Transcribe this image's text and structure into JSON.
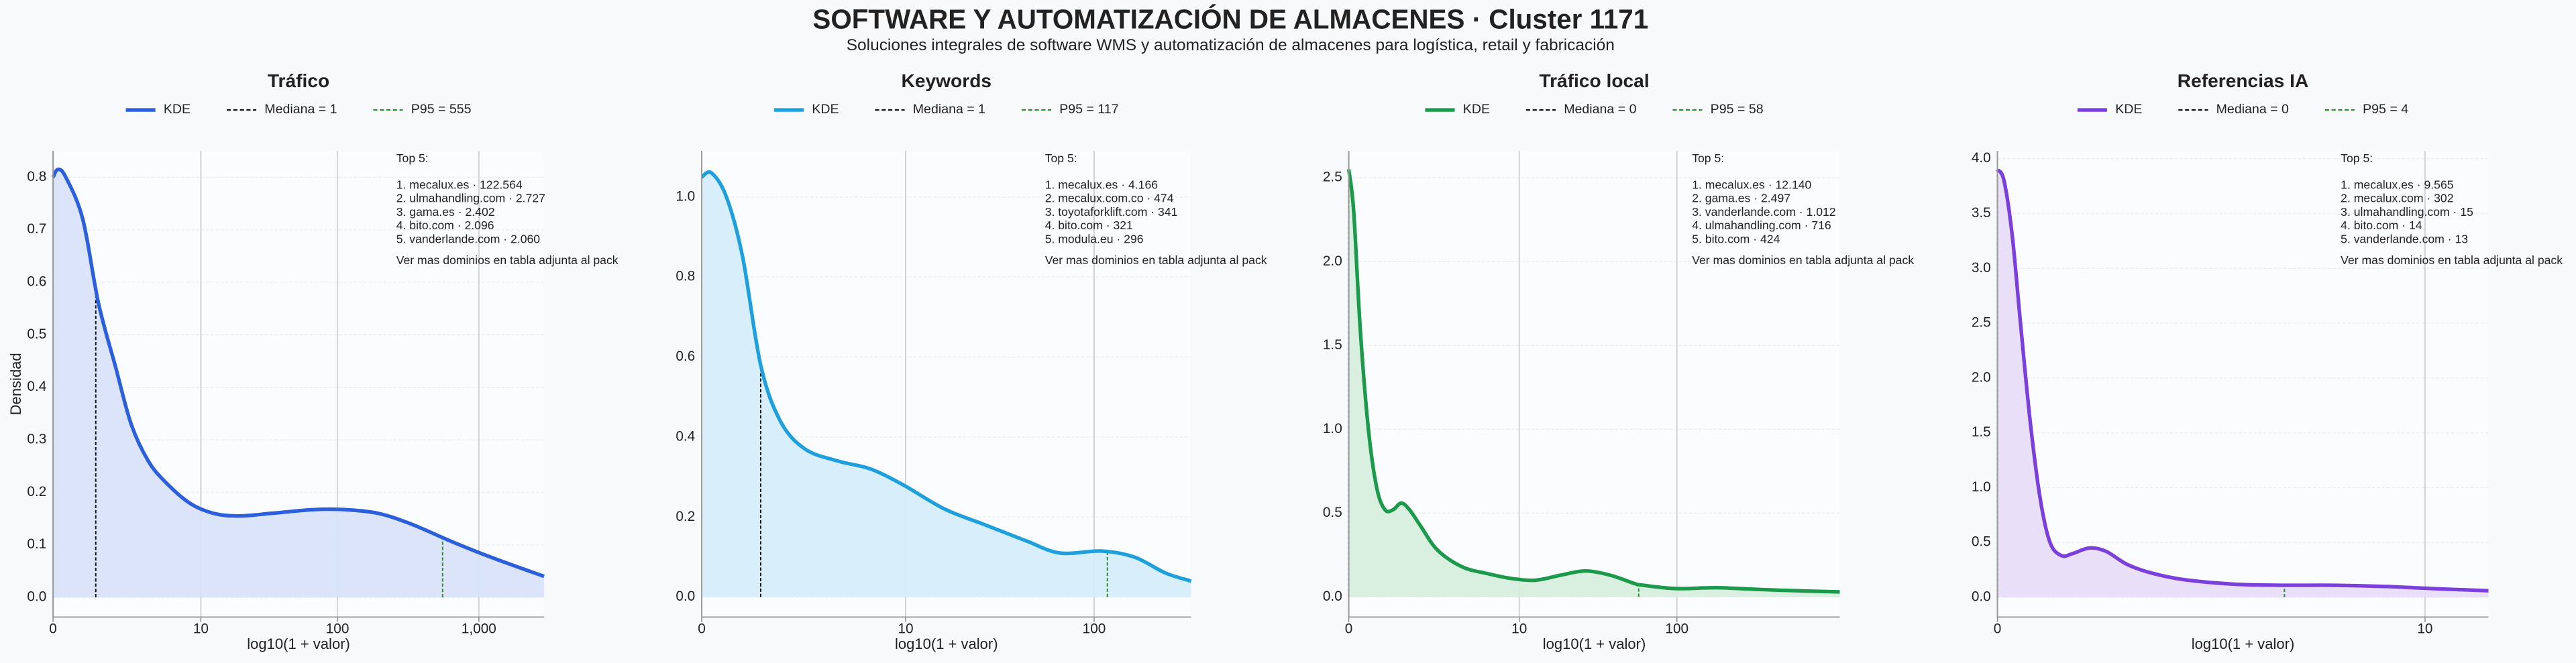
{
  "title": "SOFTWARE Y AUTOMATIZACIÓN DE ALMACENES · Cluster 1171",
  "subtitle": "Soluciones integrales de software WMS y automatización de almacenes para logística, retail y fabricación",
  "chart_data": [
    {
      "type": "kde",
      "title": "Tráfico",
      "xlabel": "log10(1 + valor)",
      "ylabel": "Densidad",
      "xscale": "log1p",
      "grid": true,
      "x": [
        0,
        0.084,
        0.23,
        0.62,
        1.09,
        1.75,
        2.55,
        3.68,
        5.17,
        8.12,
        12.5,
        19.4,
        33.7,
        66.6,
        114,
        194,
        330,
        660,
        1258,
        2883
      ],
      "series": [
        {
          "name": "KDE",
          "color": "#2b5fdb",
          "fill": "#d7e1f8",
          "values": [
            0.8,
            0.815,
            0.8,
            0.72,
            0.56,
            0.44,
            0.33,
            0.26,
            0.22,
            0.18,
            0.16,
            0.155,
            0.16,
            0.167,
            0.167,
            0.16,
            0.14,
            0.105,
            0.075,
            0.04
          ]
        }
      ],
      "lines": [
        {
          "name": "Mediana = 1",
          "value": 1,
          "color": "#111111"
        },
        {
          "name": "P95 = 555",
          "value": 555,
          "color": "#2e8b2e"
        }
      ],
      "xlim": [
        0,
        2883
      ],
      "xticks": [
        0,
        10,
        100,
        {
          "value": 1000,
          "label": "1,000"
        }
      ],
      "ylim": [
        -0.0375,
        0.85
      ],
      "yticks": [
        {
          "value": 0,
          "label": "0.0"
        },
        0.1,
        0.2,
        0.3,
        0.4,
        0.5,
        0.6,
        0.7,
        0.8
      ],
      "annotation": {
        "heading": "Top 5:",
        "items": [
          "1. mecalux.es · 122.564",
          "2. ulmahandling.com · 2.727",
          "3. gama.es · 2.402",
          "4. bito.com · 2.096",
          "5. vanderlande.com · 2.060"
        ],
        "footer": "Ver mas dominios en tabla adjunta al pack"
      }
    },
    {
      "type": "kde",
      "title": "Keywords",
      "xlabel": "log10(1 + valor)",
      "xscale": "log1p",
      "grid": true,
      "x": [
        0,
        0.122,
        0.337,
        0.618,
        1.0,
        1.52,
        2.37,
        3.95,
        6.29,
        9.72,
        16.4,
        27.2,
        44.7,
        66.6,
        109,
        161,
        233,
        315
      ],
      "series": [
        {
          "name": "KDE",
          "color": "#1ea0dc",
          "fill": "#d4edfb",
          "values": [
            1.05,
            1.06,
            1.0,
            0.85,
            0.58,
            0.44,
            0.37,
            0.34,
            0.32,
            0.28,
            0.22,
            0.18,
            0.14,
            0.11,
            0.115,
            0.1,
            0.06,
            0.04
          ]
        }
      ],
      "lines": [
        {
          "name": "Mediana = 1",
          "value": 1,
          "color": "#111111"
        },
        {
          "name": "P95 = 117",
          "value": 117,
          "color": "#2e8b2e"
        }
      ],
      "xlim": [
        0,
        315
      ],
      "xticks": [
        0,
        10,
        100
      ],
      "ylim": [
        -0.05,
        1.115
      ],
      "yticks": [
        {
          "value": 0,
          "label": "0.0"
        },
        0.2,
        0.4,
        0.6,
        0.8,
        {
          "value": 1,
          "label": "1.0"
        }
      ],
      "annotation": {
        "heading": "Top 5:",
        "items": [
          "1. mecalux.es · 4.166",
          "2. mecalux.com.co · 474",
          "3. toyotaforklift.com · 341",
          "4. bito.com · 321",
          "5. modula.eu · 296"
        ],
        "footer": "Ver mas dominios en tabla adjunta al pack"
      }
    },
    {
      "type": "kde",
      "title": "Tráfico local",
      "xlabel": "log10(1 + valor)",
      "xscale": "log1p",
      "grid": true,
      "x": [
        0,
        0.072,
        0.175,
        0.318,
        0.483,
        0.663,
        0.866,
        1.09,
        1.35,
        1.76,
        2.48,
        3.92,
        5.97,
        8.84,
        12.9,
        18.7,
        26.8,
        38.4,
        54.6,
        61.4,
        98.1,
        176,
        313,
        627,
        997
      ],
      "series": [
        {
          "name": "KDE",
          "color": "#1a9a4a",
          "fill": "#d5eedd",
          "values": [
            2.55,
            2.3,
            1.6,
            1.0,
            0.65,
            0.52,
            0.52,
            0.56,
            0.52,
            0.42,
            0.28,
            0.18,
            0.14,
            0.11,
            0.1,
            0.13,
            0.155,
            0.13,
            0.08,
            0.07,
            0.05,
            0.055,
            0.045,
            0.035,
            0.03
          ]
        }
      ],
      "lines": [
        {
          "name": "Mediana = 0",
          "value": 0,
          "color": "#111111"
        },
        {
          "name": "P95 = 58",
          "value": 58,
          "color": "#2e8b2e"
        }
      ],
      "xlim": [
        0,
        997
      ],
      "xticks": [
        0,
        10,
        100
      ],
      "ylim": [
        -0.12,
        2.66
      ],
      "yticks": [
        {
          "value": 0,
          "label": "0.0"
        },
        0.5,
        {
          "value": 1,
          "label": "1.0"
        },
        1.5,
        {
          "value": 2,
          "label": "2.0"
        },
        2.5
      ],
      "annotation": {
        "heading": "Top 5:",
        "items": [
          "1. mecalux.es · 12.140",
          "2. gama.es · 2.497",
          "3. vanderlande.com · 1.012",
          "4. ulmahandling.com · 716",
          "5. bito.com · 424"
        ],
        "footer": "Ver mas dominios en tabla adjunta al pack"
      }
    },
    {
      "type": "kde",
      "title": "Referencias IA",
      "xlabel": "log10(1 + valor)",
      "xscale": "log1p",
      "grid": true,
      "x": [
        0,
        0.0375,
        0.0865,
        0.138,
        0.202,
        0.271,
        0.343,
        0.432,
        0.528,
        0.675,
        0.837,
        1.07,
        1.38,
        1.86,
        2.77,
        3.97,
        5.55,
        7.63,
        10.4,
        14.7
      ],
      "series": [
        {
          "name": "KDE",
          "color": "#7b3fdc",
          "fill": "#e7dcf8",
          "values": [
            3.9,
            3.8,
            3.3,
            2.5,
            1.6,
            0.9,
            0.5,
            0.38,
            0.4,
            0.45,
            0.42,
            0.3,
            0.22,
            0.16,
            0.12,
            0.11,
            0.11,
            0.1,
            0.08,
            0.06
          ]
        }
      ],
      "lines": [
        {
          "name": "Mediana = 0",
          "value": 0,
          "color": "#111111"
        },
        {
          "name": "P95 = 4",
          "value": 4,
          "color": "#2e8b2e"
        }
      ],
      "xlim": [
        0,
        14.7
      ],
      "xticks": [
        0,
        10
      ],
      "ylim": [
        -0.18,
        4.07
      ],
      "yticks": [
        {
          "value": 0,
          "label": "0.0"
        },
        0.5,
        {
          "value": 1,
          "label": "1.0"
        },
        1.5,
        {
          "value": 2,
          "label": "2.0"
        },
        2.5,
        {
          "value": 3,
          "label": "3.0"
        },
        3.5,
        {
          "value": 4,
          "label": "4.0"
        }
      ],
      "annotation": {
        "heading": "Top 5:",
        "items": [
          "1. mecalux.es · 9.565",
          "2. mecalux.com · 302",
          "3. ulmahandling.com · 15",
          "4. bito.com · 14",
          "5. vanderlande.com · 13"
        ],
        "footer": "Ver mas dominios en tabla adjunta al pack"
      }
    }
  ]
}
